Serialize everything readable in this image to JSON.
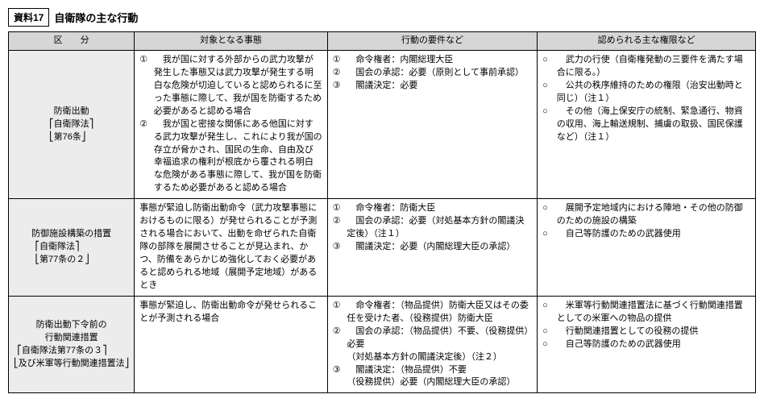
{
  "header": {
    "tag": "資料17",
    "title": "自衛隊の主な行動"
  },
  "columns": [
    "区　　分",
    "対象となる事態",
    "行動の要件など",
    "認められる主な権限など"
  ],
  "rows": [
    {
      "nameTop": "防衛出動",
      "lawLines": [
        "自衛隊法",
        "第76条"
      ],
      "situation_items": [
        {
          "mark": "①",
          "text": "　我が国に対する外部からの武力攻撃が発生した事態又は武力攻撃が発生する明白な危険が切迫していると認められるに至った事態に際して、我が国を防衛するため必要があると認める場合"
        },
        {
          "mark": "②",
          "text": "　我が国と密接な関係にある他国に対する武力攻撃が発生し、これにより我が国の存立が脅かされ、国民の生命、自由及び幸福追求の権利が根底から覆される明白な危険がある事態に際して、我が国を防衛するため必要があると認める場合"
        }
      ],
      "req_items": [
        {
          "mark": "①",
          "text": "　命令権者：内閣総理大臣"
        },
        {
          "mark": "②",
          "text": "　国会の承認：必要（原則として事前承認）"
        },
        {
          "mark": "③",
          "text": "　閣議決定：必要"
        }
      ],
      "auth_items": [
        {
          "mark": "○",
          "text": "　武力の行使（自衛権発動の三要件を満たす場合に限る。）"
        },
        {
          "mark": "○",
          "text": "　公共の秩序維持のための権限（治安出動時と同じ）（注１）"
        },
        {
          "mark": "○",
          "text": "　その他（海上保安庁の統制、緊急通行、物資の収用、海上輸送規制、捕虜の取扱、国民保護など）（注１）"
        }
      ]
    },
    {
      "nameTop": "防御施設構築の措置",
      "lawLines": [
        "自衛隊法",
        "第77条の２"
      ],
      "situation_plain": "事態が緊迫し防衛出動命令（武力攻撃事態におけるものに限る）が発せられることが予測される場合において、出動を命ぜられた自衛隊の部隊を展開させることが見込まれ、かつ、防備をあらかじめ強化しておく必要があると認められる地域（展開予定地域）があるとき",
      "req_items": [
        {
          "mark": "①",
          "text": "　命令権者：防衛大臣"
        },
        {
          "mark": "②",
          "text": "　国会の承認：必要（対処基本方針の閣議決定後）（注１）"
        },
        {
          "mark": "③",
          "text": "　閣議決定：必要（内閣総理大臣の承認）"
        }
      ],
      "auth_items": [
        {
          "mark": "○",
          "text": "　展開予定地域内における陣地・その他の防御のための施設の構築"
        },
        {
          "mark": "○",
          "text": "　自己等防護のための武器使用"
        }
      ]
    },
    {
      "nameTop": "防衛出動下令前の\n行動関連措置",
      "lawLines": [
        "自衛隊法第77条の３",
        "及び米軍等行動関連措置法"
      ],
      "situation_plain": "事態が緊迫し、防衛出動命令が発せられることが予測される場合",
      "req_items": [
        {
          "mark": "①",
          "text": "　命令権者：（物品提供）防衛大臣又はその委任を受けた者、（役務提供）防衛大臣"
        },
        {
          "mark": "②",
          "text": "　国会の承認：（物品提供）不要、（役務提供）必要"
        },
        {
          "mark": "",
          "text": "（対処基本方針の閣議決定後）（注２）"
        },
        {
          "mark": "③",
          "text": "　閣議決定：（物品提供）不要"
        },
        {
          "mark": "",
          "text": "（役務提供）必要（内閣総理大臣の承認）"
        }
      ],
      "auth_items": [
        {
          "mark": "○",
          "text": "　米軍等行動関連措置法に基づく行動関連措置としての米軍への物品の提供"
        },
        {
          "mark": "○",
          "text": "　行動関連措置としての役務の提供"
        },
        {
          "mark": "○",
          "text": "　自己等防護のための武器使用"
        }
      ]
    }
  ]
}
